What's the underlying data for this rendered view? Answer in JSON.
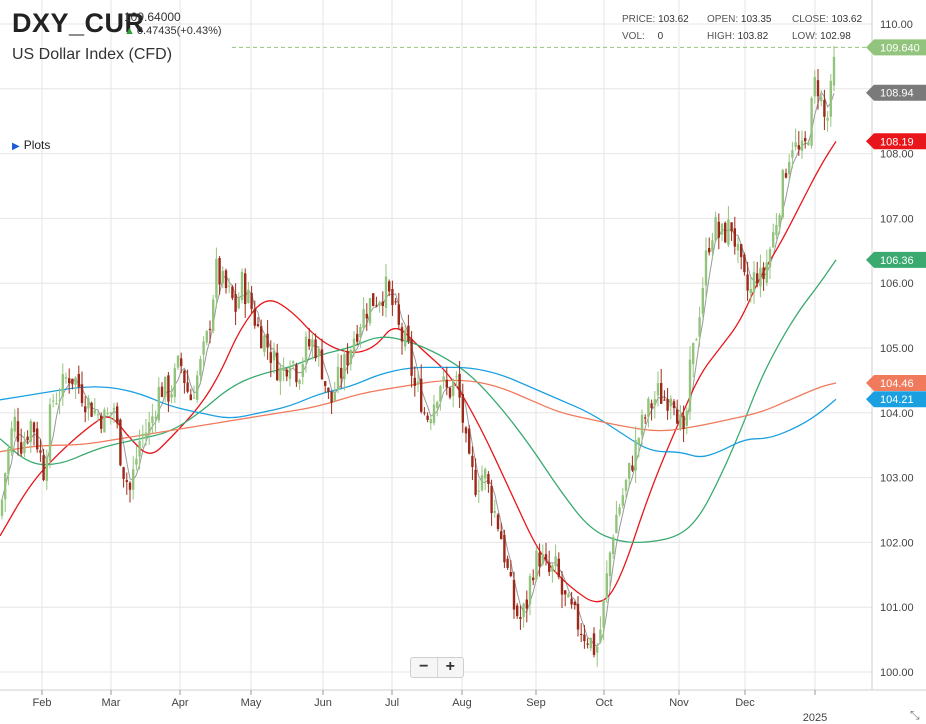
{
  "header": {
    "symbol": "DXY_CUR",
    "last_price": "109.64000",
    "change": "0.47435(+0.43%)",
    "subtitle": "US Dollar Index (CFD)",
    "plots_label": "Plots"
  },
  "stats": {
    "price_label": "PRICE:",
    "price": "103.62",
    "open_label": "OPEN:",
    "open": "103.35",
    "close_label": "CLOSE:",
    "close": "103.62",
    "vol_label": "VOL:",
    "vol": "0",
    "high_label": "HIGH:",
    "high": "103.82",
    "low_label": "LOW:",
    "low": "102.98"
  },
  "zoom": {
    "minus": "−",
    "plus": "+"
  },
  "colors": {
    "up": "#93c47d",
    "down": "#9c2a1a",
    "sma_fast": "#999999",
    "sma_red": "#e8161b",
    "sma_green": "#3aaa70",
    "sma_blue": "#1aa0e0",
    "sma_orange": "#f07a5c",
    "grid": "#e6e6e6"
  },
  "chart_data": {
    "type": "candlestick",
    "y_axis": {
      "min": 100.0,
      "max": 110.0,
      "ticks": [
        "100.00",
        "101.00",
        "102.00",
        "103.00",
        "104.00",
        "105.00",
        "106.00",
        "107.00",
        "108.00",
        "109.00",
        "110.00"
      ]
    },
    "x_axis": {
      "labels": [
        "Feb",
        "Mar",
        "Apr",
        "May",
        "Jun",
        "Jul",
        "Aug",
        "Sep",
        "Oct",
        "Nov",
        "Dec"
      ],
      "year_label": "2025"
    },
    "price_line": 109.64,
    "price_tags": [
      {
        "value": 109.64,
        "label": "109.640",
        "color": "#93c47d"
      },
      {
        "value": 108.94,
        "label": "108.94",
        "color": "#7a7a7a"
      },
      {
        "value": 108.19,
        "label": "108.19",
        "color": "#e8161b"
      },
      {
        "value": 106.36,
        "label": "106.36",
        "color": "#3aaa70"
      },
      {
        "value": 104.46,
        "label": "104.46",
        "color": "#f07a5c"
      },
      {
        "value": 104.21,
        "label": "104.21",
        "color": "#1aa0e0"
      }
    ],
    "close_series": [
      [
        0,
        102.4
      ],
      [
        6,
        103.2
      ],
      [
        14,
        103.9
      ],
      [
        22,
        103.5
      ],
      [
        32,
        103.9
      ],
      [
        44,
        103.1
      ],
      [
        52,
        104.2
      ],
      [
        60,
        104.3
      ],
      [
        68,
        104.6
      ],
      [
        76,
        104.5
      ],
      [
        86,
        104.2
      ],
      [
        96,
        104.0
      ],
      [
        106,
        103.9
      ],
      [
        114,
        104.1
      ],
      [
        122,
        103.2
      ],
      [
        130,
        102.8
      ],
      [
        140,
        103.6
      ],
      [
        150,
        103.8
      ],
      [
        160,
        104.4
      ],
      [
        170,
        104.3
      ],
      [
        180,
        104.8
      ],
      [
        190,
        104.2
      ],
      [
        200,
        104.7
      ],
      [
        208,
        105.2
      ],
      [
        216,
        106.2
      ],
      [
        222,
        106.0
      ],
      [
        230,
        105.8
      ],
      [
        236,
        105.6
      ],
      [
        242,
        106.0
      ],
      [
        250,
        105.7
      ],
      [
        258,
        105.3
      ],
      [
        266,
        105.1
      ],
      [
        274,
        104.8
      ],
      [
        282,
        104.6
      ],
      [
        290,
        104.9
      ],
      [
        298,
        104.6
      ],
      [
        306,
        105.0
      ],
      [
        314,
        105.1
      ],
      [
        322,
        104.7
      ],
      [
        330,
        104.1
      ],
      [
        338,
        104.5
      ],
      [
        346,
        104.8
      ],
      [
        354,
        105.2
      ],
      [
        362,
        105.5
      ],
      [
        370,
        105.7
      ],
      [
        378,
        105.8
      ],
      [
        386,
        105.9
      ],
      [
        394,
        105.6
      ],
      [
        400,
        105.2
      ],
      [
        408,
        105.0
      ],
      [
        414,
        104.4
      ],
      [
        420,
        104.3
      ],
      [
        426,
        103.9
      ],
      [
        432,
        104.1
      ],
      [
        440,
        104.5
      ],
      [
        448,
        104.3
      ],
      [
        456,
        104.5
      ],
      [
        462,
        104.0
      ],
      [
        468,
        103.2
      ],
      [
        476,
        102.9
      ],
      [
        484,
        103.1
      ],
      [
        492,
        102.6
      ],
      [
        500,
        102.2
      ],
      [
        508,
        101.5
      ],
      [
        514,
        101.0
      ],
      [
        520,
        100.8
      ],
      [
        526,
        101.0
      ],
      [
        532,
        101.6
      ],
      [
        540,
        101.8
      ],
      [
        548,
        101.5
      ],
      [
        556,
        101.6
      ],
      [
        562,
        101.2
      ],
      [
        568,
        101.0
      ],
      [
        576,
        100.8
      ],
      [
        584,
        100.6
      ],
      [
        590,
        100.5
      ],
      [
        596,
        100.3
      ],
      [
        602,
        100.8
      ],
      [
        608,
        101.6
      ],
      [
        614,
        102.3
      ],
      [
        620,
        102.6
      ],
      [
        628,
        103.0
      ],
      [
        636,
        103.5
      ],
      [
        644,
        103.9
      ],
      [
        650,
        104.1
      ],
      [
        658,
        104.3
      ],
      [
        666,
        104.2
      ],
      [
        672,
        104.4
      ],
      [
        678,
        104.0
      ],
      [
        684,
        103.5
      ],
      [
        690,
        104.6
      ],
      [
        696,
        105.2
      ],
      [
        702,
        105.9
      ],
      [
        708,
        106.6
      ],
      [
        714,
        106.9
      ],
      [
        720,
        106.7
      ],
      [
        726,
        106.8
      ],
      [
        732,
        106.9
      ],
      [
        738,
        106.4
      ],
      [
        744,
        106.0
      ],
      [
        750,
        105.8
      ],
      [
        756,
        106.2
      ],
      [
        762,
        106.0
      ],
      [
        768,
        106.4
      ],
      [
        774,
        106.8
      ],
      [
        780,
        107.3
      ],
      [
        786,
        107.8
      ],
      [
        792,
        108.2
      ],
      [
        798,
        108.0
      ],
      [
        804,
        108.0
      ],
      [
        810,
        108.5
      ],
      [
        816,
        109.2
      ],
      [
        820,
        108.9
      ],
      [
        826,
        108.4
      ],
      [
        830,
        108.8
      ],
      [
        836,
        109.64
      ]
    ],
    "series": [
      {
        "name": "",
        "color": "#e8161b",
        "points": [
          [
            0,
            102.1
          ],
          [
            30,
            102.9
          ],
          [
            60,
            103.4
          ],
          [
            90,
            103.8
          ],
          [
            110,
            104.0
          ],
          [
            130,
            103.6
          ],
          [
            150,
            103.3
          ],
          [
            170,
            103.6
          ],
          [
            200,
            104.1
          ],
          [
            220,
            104.6
          ],
          [
            240,
            105.3
          ],
          [
            265,
            105.8
          ],
          [
            290,
            105.6
          ],
          [
            320,
            105.1
          ],
          [
            350,
            104.9
          ],
          [
            375,
            105.0
          ],
          [
            395,
            105.4
          ],
          [
            420,
            105.0
          ],
          [
            450,
            104.6
          ],
          [
            480,
            103.8
          ],
          [
            510,
            102.8
          ],
          [
            540,
            101.8
          ],
          [
            570,
            101.3
          ],
          [
            600,
            101.0
          ],
          [
            620,
            101.4
          ],
          [
            650,
            102.8
          ],
          [
            680,
            103.9
          ],
          [
            700,
            104.6
          ],
          [
            720,
            105.0
          ],
          [
            740,
            105.4
          ],
          [
            760,
            106.1
          ],
          [
            780,
            106.6
          ],
          [
            800,
            107.2
          ],
          [
            820,
            107.8
          ],
          [
            836,
            108.19
          ]
        ]
      },
      {
        "name": "",
        "color": "#3aaa70",
        "points": [
          [
            0,
            103.6
          ],
          [
            30,
            103.2
          ],
          [
            60,
            103.2
          ],
          [
            90,
            103.4
          ],
          [
            110,
            103.5
          ],
          [
            140,
            103.6
          ],
          [
            170,
            103.7
          ],
          [
            200,
            104.0
          ],
          [
            230,
            104.4
          ],
          [
            260,
            104.6
          ],
          [
            290,
            104.7
          ],
          [
            320,
            104.9
          ],
          [
            350,
            105.0
          ],
          [
            380,
            105.2
          ],
          [
            410,
            105.1
          ],
          [
            440,
            104.9
          ],
          [
            470,
            104.6
          ],
          [
            500,
            104.1
          ],
          [
            530,
            103.5
          ],
          [
            560,
            102.8
          ],
          [
            590,
            102.2
          ],
          [
            620,
            102.0
          ],
          [
            650,
            102.0
          ],
          [
            680,
            102.1
          ],
          [
            700,
            102.4
          ],
          [
            720,
            103.0
          ],
          [
            740,
            103.7
          ],
          [
            760,
            104.5
          ],
          [
            780,
            105.1
          ],
          [
            800,
            105.6
          ],
          [
            820,
            106.0
          ],
          [
            836,
            106.36
          ]
        ]
      },
      {
        "name": "",
        "color": "#1aa0e0",
        "points": [
          [
            0,
            104.2
          ],
          [
            40,
            104.3
          ],
          [
            80,
            104.4
          ],
          [
            110,
            104.4
          ],
          [
            140,
            104.3
          ],
          [
            170,
            104.1
          ],
          [
            200,
            104.0
          ],
          [
            230,
            103.9
          ],
          [
            260,
            104.0
          ],
          [
            290,
            104.1
          ],
          [
            320,
            104.3
          ],
          [
            350,
            104.4
          ],
          [
            380,
            104.6
          ],
          [
            410,
            104.7
          ],
          [
            440,
            104.7
          ],
          [
            470,
            104.7
          ],
          [
            500,
            104.6
          ],
          [
            530,
            104.4
          ],
          [
            560,
            104.2
          ],
          [
            590,
            104.0
          ],
          [
            620,
            103.7
          ],
          [
            650,
            103.4
          ],
          [
            680,
            103.4
          ],
          [
            700,
            103.3
          ],
          [
            720,
            103.4
          ],
          [
            745,
            103.6
          ],
          [
            770,
            103.6
          ],
          [
            800,
            103.8
          ],
          [
            820,
            104.0
          ],
          [
            836,
            104.21
          ]
        ]
      },
      {
        "name": "",
        "color": "#f07a5c",
        "points": [
          [
            0,
            103.4
          ],
          [
            40,
            103.5
          ],
          [
            80,
            103.5
          ],
          [
            120,
            103.6
          ],
          [
            160,
            103.7
          ],
          [
            200,
            103.8
          ],
          [
            240,
            103.9
          ],
          [
            280,
            104.0
          ],
          [
            320,
            104.1
          ],
          [
            360,
            104.3
          ],
          [
            400,
            104.4
          ],
          [
            440,
            104.5
          ],
          [
            470,
            104.5
          ],
          [
            500,
            104.4
          ],
          [
            530,
            104.2
          ],
          [
            560,
            104.0
          ],
          [
            590,
            103.9
          ],
          [
            620,
            103.8
          ],
          [
            660,
            103.7
          ],
          [
            700,
            103.8
          ],
          [
            730,
            103.9
          ],
          [
            760,
            104.0
          ],
          [
            790,
            104.2
          ],
          [
            820,
            104.4
          ],
          [
            836,
            104.46
          ]
        ]
      }
    ]
  }
}
